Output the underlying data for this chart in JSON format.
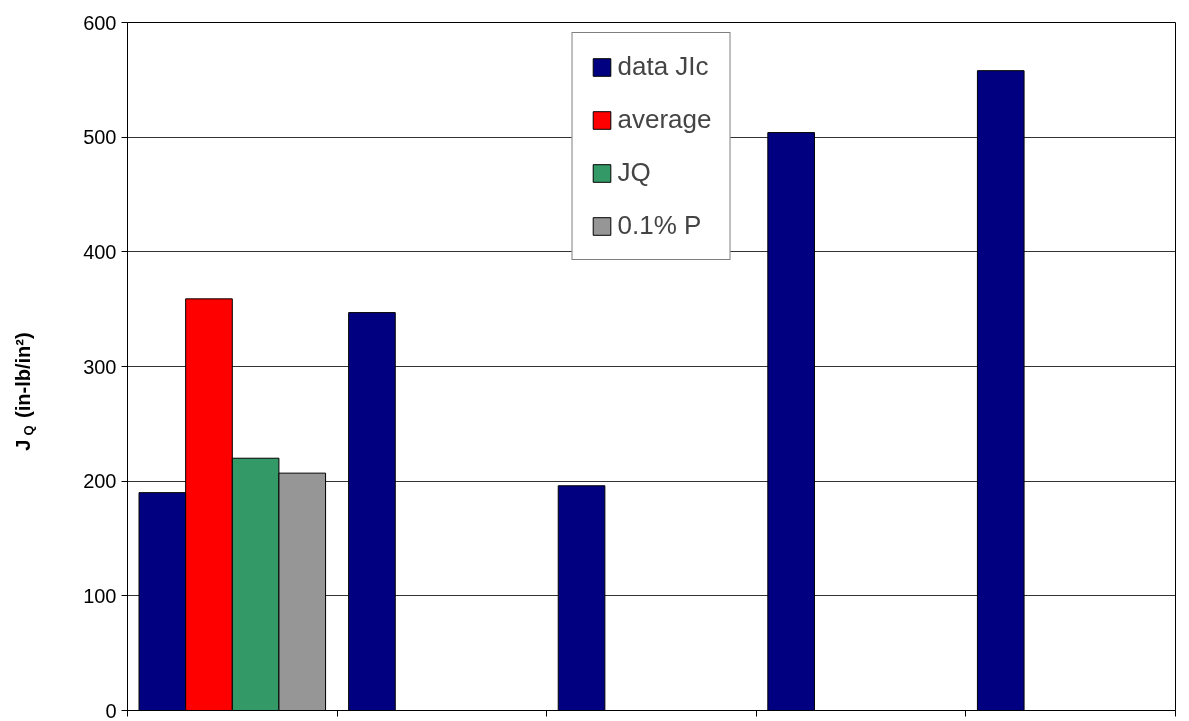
{
  "chart_data": {
    "type": "bar",
    "ylabel": "J$_{Q}$ (in-lb/in²)",
    "categories": [
      null,
      null,
      null,
      null,
      null
    ],
    "series": [
      {
        "name": "data JIc",
        "color": "#000080",
        "values": [
          190,
          347,
          196,
          504,
          558
        ]
      },
      {
        "name": "average",
        "color": "#ff0000",
        "values": [
          359,
          null,
          null,
          null,
          null
        ]
      },
      {
        "name": "JQ",
        "color": "#339966",
        "values": [
          220,
          null,
          null,
          null,
          null
        ]
      },
      {
        "name": "0.1% P",
        "color": "#969696",
        "values": [
          207,
          null,
          null,
          null,
          null
        ]
      }
    ],
    "ylim": [
      0,
      600
    ],
    "yticks": [
      0,
      100,
      200,
      300,
      400,
      500,
      600
    ],
    "grid": "y",
    "legend": "top"
  }
}
